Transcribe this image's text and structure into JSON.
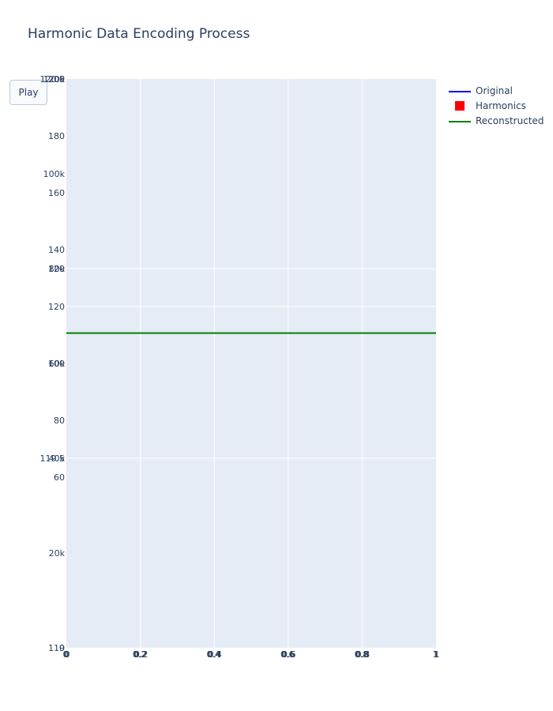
{
  "title": "Harmonic Data Encoding Process",
  "controls": {
    "play_label": "Play"
  },
  "colors": {
    "plot_bg": "#e5ecf6",
    "grid": "#ffffff",
    "original": "#0000ff",
    "harmonics": "#ff0000",
    "reconstructed": "#008000",
    "text": "#2a3f5f"
  },
  "legend": [
    {
      "name": "Original",
      "symbol": "line",
      "color": "#0000ff"
    },
    {
      "name": "Harmonics",
      "symbol": "square",
      "color": "#ff0000"
    },
    {
      "name": "Reconstructed",
      "symbol": "line",
      "color": "#008000"
    }
  ],
  "chart_data": {
    "type": "line",
    "title": "Harmonic Data Encoding Process",
    "grid": true,
    "legend_position": "top-right",
    "x_axis": {
      "range": [
        0,
        1
      ],
      "tick_sets": [
        [
          "0",
          "0.2",
          "0.4",
          "0.6",
          "0.8",
          "1"
        ],
        [
          "0",
          "0.2",
          "0.4",
          "0.6",
          "0.8",
          "1"
        ],
        [
          "0",
          "0.2",
          "0.4",
          "0.6",
          "0.8",
          "1"
        ]
      ]
    },
    "y_axes": [
      {
        "range": [
          0,
          200
        ],
        "ticks": [
          0,
          60,
          80,
          100,
          120,
          140,
          160,
          180,
          200
        ],
        "labels": [
          "0",
          "60",
          "80",
          "100",
          "120",
          "140",
          "160",
          "180",
          "200"
        ]
      },
      {
        "range": [
          0,
          120000
        ],
        "ticks": [
          20000,
          40000,
          60000,
          80000,
          100000,
          120000
        ],
        "labels": [
          "20k",
          "40k",
          "60k",
          "80k",
          "100k",
          "120k"
        ]
      },
      {
        "range": [
          119,
          120.5
        ],
        "ticks": [
          119,
          119.5,
          120,
          120.5
        ],
        "labels": [
          "119",
          "119.5",
          "120",
          "120.5"
        ]
      }
    ],
    "series": [
      {
        "name": "Original",
        "axis": 0,
        "x": [],
        "y": []
      },
      {
        "name": "Harmonics",
        "axis": 1,
        "x": [],
        "y": []
      },
      {
        "name": "Reconstructed",
        "axis": 2,
        "x": [
          0,
          1
        ],
        "y": [
          119.83,
          119.83
        ]
      }
    ]
  }
}
